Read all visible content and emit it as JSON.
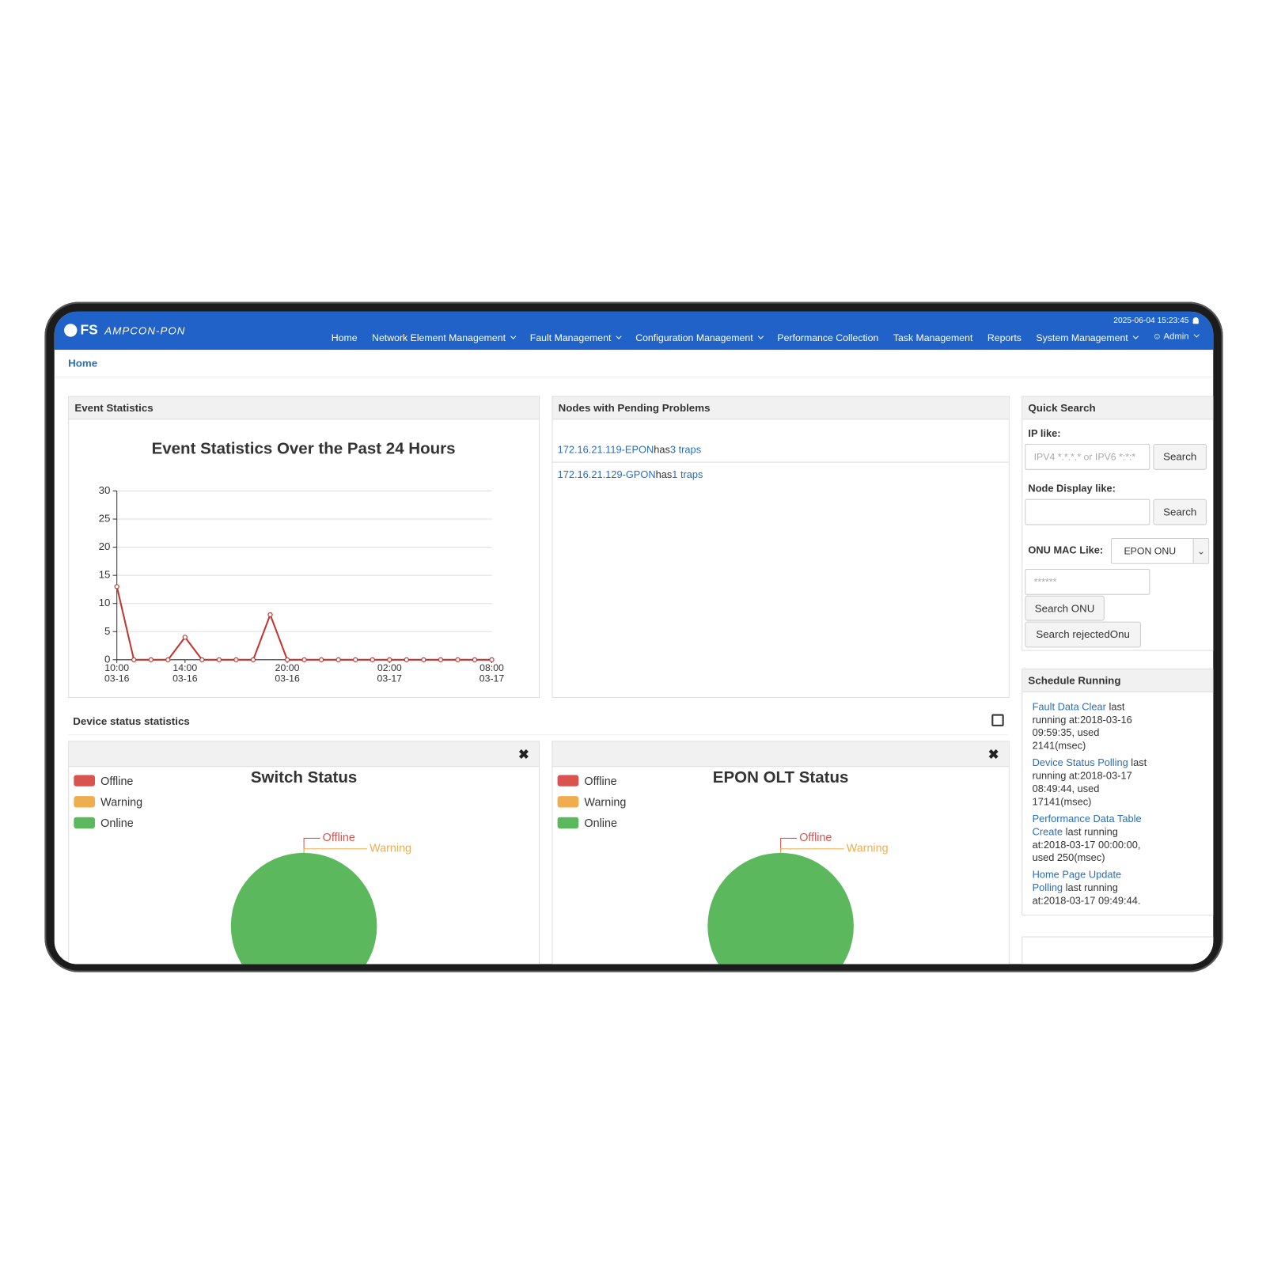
{
  "header": {
    "logo": "FS",
    "product": "AMPCON-PON",
    "datetime": "2025-06-04 15:23:45",
    "nav": [
      "Home",
      "Network Element Management",
      "Fault Management",
      "Configuration Management",
      "Performance Collection",
      "Task Management",
      "Reports",
      "System Management"
    ],
    "user": "Admin"
  },
  "breadcrumb": "Home",
  "event_panel": {
    "title": "Event Statistics"
  },
  "pending": {
    "title": "Nodes with Pending Problems",
    "items": [
      {
        "node": "172.16.21.119-EPON",
        "text": "has",
        "count": "3 traps"
      },
      {
        "node": "172.16.21.129-GPON",
        "text": "has",
        "count": "1 traps"
      }
    ]
  },
  "device_status": {
    "title": "Device status statistics"
  },
  "quick_search": {
    "title": "Quick Search",
    "ip_label": "IP like:",
    "ip_placeholder": "IPV4 *.*.*.* or IPV6 *:*:*",
    "ip_search": "Search",
    "node_label": "Node Display like:",
    "node_search": "Search",
    "onu_label": "ONU MAC Like:",
    "onu_type": "EPON ONU",
    "mac_placeholder": "******",
    "search_onu": "Search ONU",
    "search_rejected": "Search rejectedOnu"
  },
  "schedule": {
    "title": "Schedule Running",
    "items": [
      {
        "name": "Fault Data Clear",
        "text": "last running at:2018-03-16 09:59:35, used 2141(msec)"
      },
      {
        "name": "Device Status Polling",
        "text": "last running at:2018-03-17 08:49:44, used 17141(msec)"
      },
      {
        "name": "Performance Data Table Create",
        "text": "last running at:2018-03-17 00:00:00, used 250(msec)"
      },
      {
        "name": "Home Page Update Polling",
        "text": "last running at:2018-03-17 09:49:44."
      }
    ]
  },
  "chart_data": [
    {
      "type": "line",
      "title": "Event Statistics Over the Past 24 Hours",
      "categories": [
        "10:00\n03-16",
        null,
        null,
        null,
        "14:00\n03-16",
        null,
        null,
        null,
        null,
        null,
        "20:00\n03-16",
        null,
        null,
        null,
        null,
        null,
        "02:00\n03-17",
        null,
        null,
        null,
        null,
        null,
        "08:00\n03-17"
      ],
      "values": [
        13,
        0,
        0,
        0,
        4,
        0,
        0,
        0,
        0,
        8,
        0,
        0,
        0,
        0,
        0,
        0,
        0,
        0,
        0,
        0,
        0,
        0,
        0
      ],
      "color": "#c23531",
      "ylim": [
        0,
        30
      ],
      "yticks": [
        0,
        5,
        10,
        15,
        20,
        25,
        30
      ],
      "grid": true
    },
    {
      "type": "pie",
      "title": "Switch Status",
      "categories": [
        "Offline",
        "Warning",
        "Online"
      ],
      "values": [
        0,
        0,
        100
      ],
      "colors": [
        "#d9534f",
        "#f0ad4e",
        "#5cb85c"
      ]
    },
    {
      "type": "pie",
      "title": "EPON OLT Status",
      "categories": [
        "Offline",
        "Warning",
        "Online"
      ],
      "values": [
        0,
        0,
        100
      ],
      "colors": [
        "#d9534f",
        "#f0ad4e",
        "#5cb85c"
      ]
    }
  ]
}
